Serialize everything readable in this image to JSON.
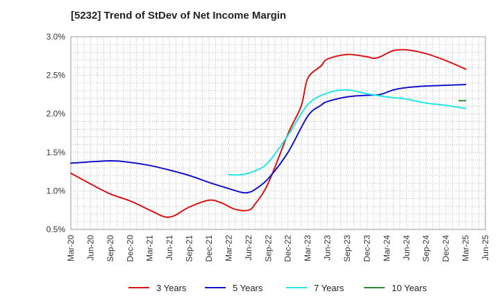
{
  "title": "[5232]  Trend of StDev of Net Income Margin",
  "chart_data": {
    "type": "line",
    "title": "[5232]  Trend of StDev of Net Income Margin",
    "x_ticks": [
      "Mar-20",
      "Jun-20",
      "Sep-20",
      "Dec-20",
      "Mar-21",
      "Jun-21",
      "Sep-21",
      "Dec-21",
      "Mar-22",
      "Jun-22",
      "Sep-22",
      "Dec-22",
      "Mar-23",
      "Jun-23",
      "Sep-23",
      "Dec-23",
      "Mar-24",
      "Jun-24",
      "Sep-24",
      "Dec-24",
      "Mar-25",
      "Jun-25"
    ],
    "y_ticks": [
      "0.5%",
      "1.0%",
      "1.5%",
      "2.0%",
      "2.5%",
      "3.0%"
    ],
    "ylim": [
      0.5,
      3.0
    ],
    "y_unit": "%",
    "grid": "dotted vertical and horizontal",
    "legend_position": "bottom",
    "series": [
      {
        "name": "3 Years",
        "color": "#dd1111",
        "points": [
          [
            "Mar-20",
            1.23
          ],
          [
            "Jun-20",
            1.09
          ],
          [
            "Sep-20",
            0.96
          ],
          [
            "Dec-20",
            0.87
          ],
          [
            "Mar-21",
            0.75
          ],
          [
            "May-21",
            0.67
          ],
          [
            "Jun-21",
            0.66
          ],
          [
            "Jul-21",
            0.69
          ],
          [
            "Sep-21",
            0.79
          ],
          [
            "Dec-21",
            0.88
          ],
          [
            "Feb-22",
            0.84
          ],
          [
            "Apr-22",
            0.76
          ],
          [
            "Jun-22",
            0.75
          ],
          [
            "Jul-22",
            0.83
          ],
          [
            "Sep-22",
            1.1
          ],
          [
            "Dec-22",
            1.74
          ],
          [
            "Feb-23",
            2.1
          ],
          [
            "Mar-23",
            2.46
          ],
          [
            "May-23",
            2.62
          ],
          [
            "Jun-23",
            2.71
          ],
          [
            "Sep-23",
            2.77
          ],
          [
            "Dec-23",
            2.74
          ],
          [
            "Jan-24",
            2.72
          ],
          [
            "Feb-24",
            2.74
          ],
          [
            "Apr-24",
            2.82
          ],
          [
            "Jun-24",
            2.83
          ],
          [
            "Sep-24",
            2.78
          ],
          [
            "Dec-24",
            2.69
          ],
          [
            "Mar-25",
            2.58
          ]
        ]
      },
      {
        "name": "5 Years",
        "color": "#1111cc",
        "points": [
          [
            "Mar-20",
            1.36
          ],
          [
            "Sep-20",
            1.39
          ],
          [
            "Dec-20",
            1.37
          ],
          [
            "Mar-21",
            1.33
          ],
          [
            "Jun-21",
            1.27
          ],
          [
            "Sep-21",
            1.2
          ],
          [
            "Dec-21",
            1.11
          ],
          [
            "Mar-22",
            1.03
          ],
          [
            "May-22",
            0.98
          ],
          [
            "Jun-22",
            0.98
          ],
          [
            "Jul-22",
            1.02
          ],
          [
            "Sep-22",
            1.16
          ],
          [
            "Dec-22",
            1.5
          ],
          [
            "Mar-23",
            1.97
          ],
          [
            "May-23",
            2.11
          ],
          [
            "Jun-23",
            2.16
          ],
          [
            "Sep-23",
            2.22
          ],
          [
            "Dec-23",
            2.24
          ],
          [
            "Feb-24",
            2.25
          ],
          [
            "Apr-24",
            2.31
          ],
          [
            "Jun-24",
            2.34
          ],
          [
            "Sep-24",
            2.36
          ],
          [
            "Dec-24",
            2.37
          ],
          [
            "Mar-25",
            2.38
          ]
        ]
      },
      {
        "name": "7 Years",
        "color": "#22e6e6",
        "points": [
          [
            "Mar-22",
            1.21
          ],
          [
            "May-22",
            1.21
          ],
          [
            "Jul-22",
            1.26
          ],
          [
            "Sep-22",
            1.37
          ],
          [
            "Dec-22",
            1.72
          ],
          [
            "Mar-23",
            2.12
          ],
          [
            "Jun-23",
            2.27
          ],
          [
            "Sep-23",
            2.31
          ],
          [
            "Dec-23",
            2.26
          ],
          [
            "Mar-24",
            2.22
          ],
          [
            "Jun-24",
            2.19
          ],
          [
            "Sep-24",
            2.14
          ],
          [
            "Dec-24",
            2.11
          ],
          [
            "Mar-25",
            2.07
          ]
        ]
      },
      {
        "name": "10 Years",
        "color": "#2e8b2e",
        "points": [
          [
            "Feb-25",
            2.17
          ],
          [
            "Mar-25",
            2.17
          ]
        ]
      }
    ]
  }
}
